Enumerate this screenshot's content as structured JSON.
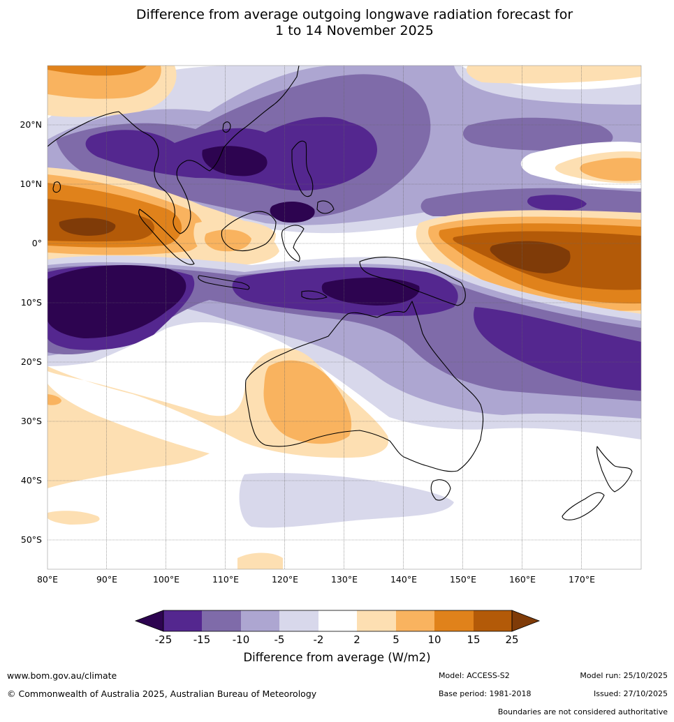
{
  "header": {
    "title_line1": "Difference from average outgoing longwave radiation forecast for",
    "title_line2": "1 to 14 November 2025"
  },
  "map": {
    "lon_labels": [
      "80°E",
      "90°E",
      "100°E",
      "110°E",
      "120°E",
      "130°E",
      "140°E",
      "150°E",
      "160°E",
      "170°E"
    ],
    "lat_labels": [
      "20°N",
      "10°N",
      "0°",
      "10°S",
      "20°S",
      "30°S",
      "40°S",
      "50°S"
    ],
    "extent_lon": [
      80,
      180
    ],
    "extent_lat": [
      -55,
      30
    ]
  },
  "legend": {
    "title": "Difference from average (W/m2)",
    "tick_labels": [
      "-25",
      "-15",
      "-10",
      "-5",
      "-2",
      "2",
      "5",
      "10",
      "15",
      "25"
    ],
    "colors": {
      "below_min": "#2d0450",
      "bins": [
        "#54278f",
        "#7f6ba9",
        "#ada6d1",
        "#d8d8eb",
        "#ffffff",
        "#fddfb2",
        "#f9b35f",
        "#e0821b",
        "#b35a08"
      ],
      "above_max": "#7f3b08"
    }
  },
  "footer": {
    "website": "www.bom.gov.au/climate",
    "copyright": "© Commonwealth of Australia 2025, Australian Bureau of Meteorology",
    "model": "Model: ACCESS-S2",
    "base_period": "Base period: 1981-2018",
    "model_run": "Model run: 25/10/2025",
    "issued": "Issued: 27/10/2025",
    "disclaimer": "Boundaries are not considered authoritative"
  }
}
